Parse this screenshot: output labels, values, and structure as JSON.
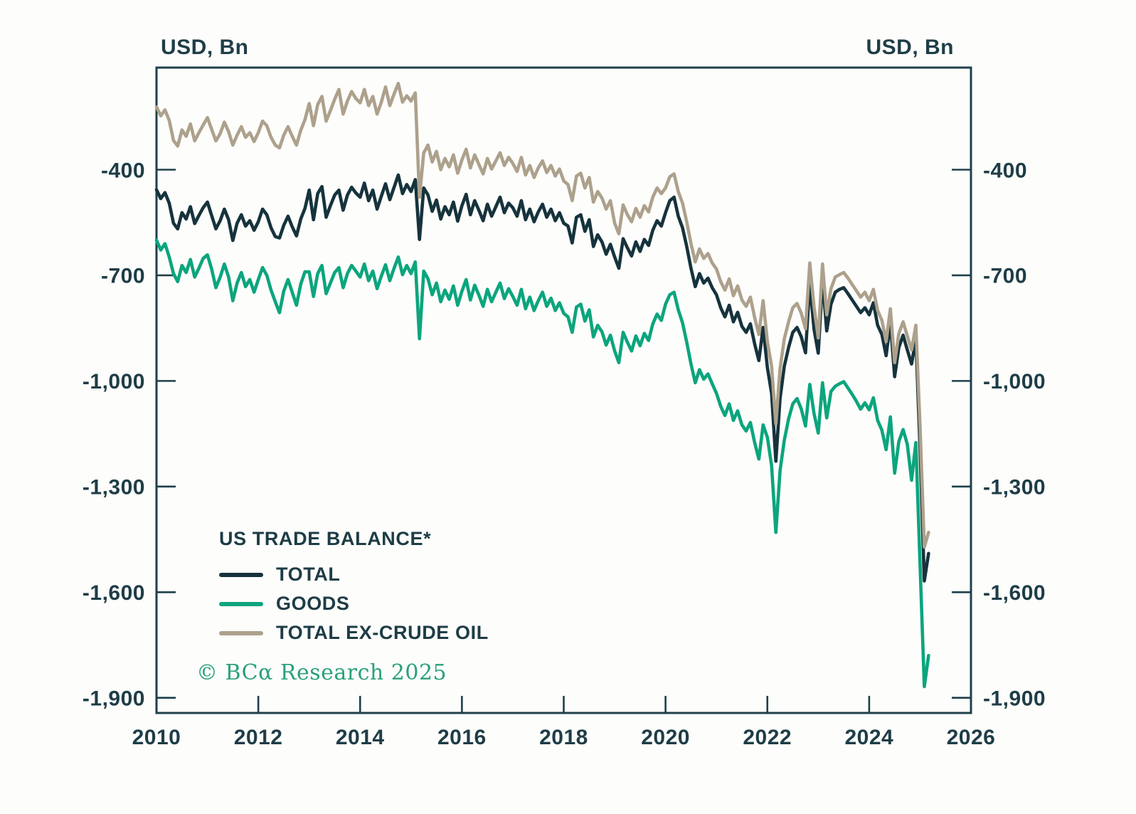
{
  "header": {
    "unit_label_left": "USD, Bn",
    "unit_label_right": "USD, Bn"
  },
  "legend": {
    "title": "US TRADE BALANCE*",
    "items": [
      {
        "label": "TOTAL",
        "color": "#16333d"
      },
      {
        "label": "GOODS",
        "color": "#0ca57d"
      },
      {
        "label": "TOTAL EX-CRUDE OIL",
        "color": "#ada18c"
      }
    ]
  },
  "copyright": "© BCα Research 2025",
  "colors": {
    "axis": "#1e404b",
    "text": "#1e3d47",
    "background": "#fdfdfb"
  },
  "chart_data": {
    "type": "line",
    "title": "US TRADE BALANCE*",
    "ylabel": "USD, Bn",
    "xlabel": "",
    "grid": false,
    "legend_position": "inside-lower-left",
    "x_start_year": 2010,
    "x_step_months": 1,
    "xlim": [
      2010,
      2026
    ],
    "ylim": [
      -1943,
      -110
    ],
    "x_ticks": [
      2010,
      2012,
      2014,
      2016,
      2018,
      2020,
      2022,
      2024,
      2026
    ],
    "y_ticks": [
      -400,
      -700,
      -1000,
      -1300,
      -1600,
      -1900
    ],
    "series": [
      {
        "name": "GOODS",
        "color": "#0ca57d",
        "values": [
          -600,
          -628,
          -610,
          -648,
          -695,
          -718,
          -672,
          -692,
          -655,
          -705,
          -680,
          -652,
          -642,
          -682,
          -735,
          -705,
          -668,
          -705,
          -772,
          -722,
          -692,
          -732,
          -712,
          -748,
          -712,
          -678,
          -700,
          -742,
          -775,
          -806,
          -745,
          -712,
          -748,
          -785,
          -725,
          -690,
          -690,
          -760,
          -695,
          -672,
          -752,
          -722,
          -692,
          -678,
          -735,
          -695,
          -672,
          -688,
          -705,
          -668,
          -715,
          -688,
          -738,
          -702,
          -670,
          -715,
          -680,
          -648,
          -698,
          -672,
          -695,
          -662,
          -880,
          -688,
          -710,
          -755,
          -722,
          -775,
          -742,
          -768,
          -730,
          -785,
          -745,
          -712,
          -770,
          -728,
          -756,
          -788,
          -740,
          -775,
          -748,
          -722,
          -766,
          -738,
          -760,
          -785,
          -740,
          -795,
          -762,
          -800,
          -772,
          -748,
          -788,
          -765,
          -800,
          -778,
          -808,
          -818,
          -862,
          -790,
          -782,
          -830,
          -798,
          -875,
          -842,
          -860,
          -898,
          -870,
          -915,
          -948,
          -862,
          -890,
          -915,
          -872,
          -900,
          -865,
          -885,
          -838,
          -810,
          -828,
          -782,
          -755,
          -748,
          -798,
          -835,
          -890,
          -952,
          -1005,
          -968,
          -995,
          -980,
          -1008,
          -1035,
          -1072,
          -1098,
          -1065,
          -1112,
          -1085,
          -1125,
          -1142,
          -1118,
          -1175,
          -1222,
          -1125,
          -1160,
          -1240,
          -1430,
          -1255,
          -1168,
          -1108,
          -1065,
          -1050,
          -1080,
          -1128,
          -1010,
          -1092,
          -1148,
          -1005,
          -1105,
          -1030,
          -1015,
          -1008,
          -1002,
          -1020,
          -1038,
          -1058,
          -1080,
          -1062,
          -1082,
          -1048,
          -1112,
          -1140,
          -1195,
          -1102,
          -1262,
          -1172,
          -1138,
          -1180,
          -1282,
          -1175,
          -1520,
          -1868,
          -1780
        ]
      },
      {
        "name": "TOTAL",
        "color": "#16333d",
        "values": [
          -457,
          -482,
          -465,
          -495,
          -552,
          -568,
          -522,
          -540,
          -505,
          -553,
          -530,
          -508,
          -492,
          -530,
          -568,
          -545,
          -512,
          -542,
          -601,
          -552,
          -528,
          -560,
          -545,
          -572,
          -548,
          -512,
          -528,
          -565,
          -590,
          -594,
          -558,
          -532,
          -562,
          -588,
          -540,
          -510,
          -458,
          -542,
          -468,
          -448,
          -535,
          -502,
          -472,
          -458,
          -515,
          -472,
          -450,
          -466,
          -478,
          -438,
          -488,
          -458,
          -512,
          -475,
          -440,
          -485,
          -450,
          -415,
          -468,
          -442,
          -462,
          -428,
          -598,
          -452,
          -472,
          -518,
          -486,
          -540,
          -505,
          -528,
          -492,
          -546,
          -502,
          -470,
          -528,
          -488,
          -515,
          -545,
          -498,
          -532,
          -505,
          -478,
          -522,
          -495,
          -508,
          -532,
          -488,
          -542,
          -512,
          -548,
          -520,
          -498,
          -535,
          -512,
          -545,
          -522,
          -552,
          -560,
          -608,
          -535,
          -528,
          -575,
          -542,
          -618,
          -585,
          -605,
          -640,
          -612,
          -648,
          -680,
          -596,
          -622,
          -645,
          -605,
          -632,
          -598,
          -615,
          -572,
          -545,
          -560,
          -522,
          -488,
          -478,
          -532,
          -565,
          -618,
          -680,
          -732,
          -695,
          -722,
          -708,
          -735,
          -755,
          -792,
          -818,
          -785,
          -832,
          -805,
          -845,
          -862,
          -838,
          -895,
          -942,
          -848,
          -962,
          -1035,
          -1228,
          -1050,
          -958,
          -905,
          -862,
          -848,
          -875,
          -920,
          -722,
          -852,
          -921,
          -712,
          -858,
          -782,
          -748,
          -740,
          -735,
          -752,
          -770,
          -788,
          -806,
          -792,
          -812,
          -778,
          -842,
          -868,
          -928,
          -834,
          -988,
          -905,
          -870,
          -912,
          -952,
          -880,
          -1190,
          -1568,
          -1490
        ]
      },
      {
        "name": "TOTAL EX-CRUDE OIL",
        "color": "#ada18c",
        "values": [
          -222,
          -247,
          -230,
          -260,
          -317,
          -333,
          -287,
          -305,
          -270,
          -318,
          -295,
          -273,
          -252,
          -285,
          -318,
          -298,
          -265,
          -292,
          -330,
          -302,
          -278,
          -308,
          -295,
          -320,
          -295,
          -262,
          -275,
          -308,
          -330,
          -338,
          -302,
          -278,
          -305,
          -330,
          -288,
          -258,
          -212,
          -275,
          -215,
          -192,
          -262,
          -232,
          -200,
          -172,
          -242,
          -205,
          -178,
          -198,
          -210,
          -172,
          -218,
          -192,
          -242,
          -208,
          -165,
          -218,
          -185,
          -155,
          -208,
          -190,
          -205,
          -182,
          -478,
          -352,
          -330,
          -378,
          -348,
          -400,
          -368,
          -392,
          -358,
          -410,
          -372,
          -342,
          -395,
          -358,
          -385,
          -412,
          -368,
          -398,
          -375,
          -352,
          -388,
          -365,
          -382,
          -405,
          -365,
          -415,
          -388,
          -422,
          -395,
          -375,
          -408,
          -388,
          -418,
          -398,
          -432,
          -442,
          -488,
          -418,
          -410,
          -452,
          -422,
          -492,
          -462,
          -480,
          -512,
          -488,
          -552,
          -582,
          -500,
          -528,
          -548,
          -510,
          -535,
          -502,
          -520,
          -478,
          -452,
          -468,
          -452,
          -420,
          -412,
          -462,
          -495,
          -548,
          -610,
          -662,
          -625,
          -652,
          -638,
          -665,
          -682,
          -718,
          -742,
          -710,
          -758,
          -730,
          -770,
          -788,
          -762,
          -820,
          -868,
          -772,
          -888,
          -958,
          -1122,
          -965,
          -880,
          -832,
          -792,
          -780,
          -808,
          -852,
          -665,
          -788,
          -878,
          -668,
          -812,
          -738,
          -705,
          -698,
          -692,
          -708,
          -726,
          -744,
          -762,
          -748,
          -772,
          -740,
          -800,
          -828,
          -888,
          -795,
          -948,
          -865,
          -832,
          -872,
          -912,
          -842,
          -1128,
          -1472,
          -1430
        ]
      }
    ]
  }
}
